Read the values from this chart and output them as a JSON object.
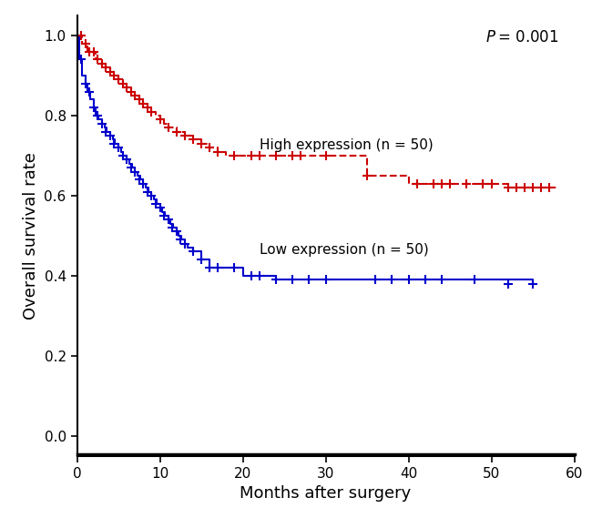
{
  "title": "",
  "xlabel": "Months after surgery",
  "ylabel": "Overall survival rate",
  "xlim": [
    0,
    60
  ],
  "ylim": [
    -0.05,
    1.05
  ],
  "xticks": [
    0,
    10,
    20,
    30,
    40,
    50,
    60
  ],
  "yticks": [
    0.0,
    0.2,
    0.4,
    0.6,
    0.8,
    1.0
  ],
  "pvalue_text": "P = 0.001",
  "high_label": "High expression (n = 50)",
  "low_label": "Low expression (n = 50)",
  "high_color": "#CC0000",
  "low_color": "#0000CC",
  "high_km_times": [
    0,
    0.3,
    0.6,
    1.0,
    1.3,
    1.6,
    2.0,
    2.3,
    2.6,
    3.0,
    3.3,
    3.6,
    4.0,
    4.5,
    5.0,
    5.5,
    6.0,
    6.5,
    7.0,
    7.5,
    8.0,
    8.5,
    9.0,
    9.5,
    10.0,
    10.5,
    11.0,
    12.0,
    13.0,
    14.0,
    15.0,
    16.0,
    17.0,
    18.0,
    19.0,
    20.0,
    21.0,
    22.0,
    25.0,
    27.0,
    30.0,
    35.0,
    40.0,
    41.0,
    43.0,
    44.0,
    46.0,
    48.0,
    50.0,
    52.0,
    54.0,
    55.0,
    56.0,
    57.0,
    58.0
  ],
  "high_km_surv": [
    1.0,
    1.0,
    0.98,
    0.98,
    0.96,
    0.96,
    0.96,
    0.94,
    0.94,
    0.93,
    0.93,
    0.92,
    0.91,
    0.9,
    0.89,
    0.88,
    0.87,
    0.86,
    0.85,
    0.84,
    0.83,
    0.82,
    0.81,
    0.8,
    0.79,
    0.78,
    0.77,
    0.76,
    0.75,
    0.74,
    0.73,
    0.72,
    0.71,
    0.7,
    0.7,
    0.7,
    0.7,
    0.7,
    0.7,
    0.7,
    0.7,
    0.65,
    0.63,
    0.63,
    0.63,
    0.63,
    0.63,
    0.63,
    0.63,
    0.62,
    0.62,
    0.62,
    0.62,
    0.62,
    0.62
  ],
  "high_censor_times": [
    0.5,
    1.0,
    1.5,
    2.0,
    2.5,
    3.0,
    3.5,
    4.0,
    4.5,
    5.0,
    5.5,
    6.0,
    6.5,
    7.0,
    7.5,
    8.0,
    8.5,
    9.0,
    10.0,
    11.0,
    12.0,
    13.0,
    14.0,
    15.0,
    16.0,
    17.0,
    19.0,
    21.0,
    22.0,
    24.0,
    26.0,
    27.0,
    30.0,
    35.0,
    41.0,
    43.0,
    44.0,
    45.0,
    47.0,
    49.0,
    50.0,
    52.0,
    53.0,
    54.0,
    55.0,
    56.0,
    57.0
  ],
  "high_censor_surv": [
    1.0,
    0.98,
    0.96,
    0.96,
    0.94,
    0.93,
    0.92,
    0.91,
    0.9,
    0.89,
    0.88,
    0.87,
    0.86,
    0.85,
    0.84,
    0.83,
    0.82,
    0.81,
    0.79,
    0.77,
    0.76,
    0.75,
    0.74,
    0.73,
    0.72,
    0.71,
    0.7,
    0.7,
    0.7,
    0.7,
    0.7,
    0.7,
    0.7,
    0.65,
    0.63,
    0.63,
    0.63,
    0.63,
    0.63,
    0.63,
    0.63,
    0.62,
    0.62,
    0.62,
    0.62,
    0.62,
    0.62
  ],
  "low_km_times": [
    0,
    0.3,
    0.6,
    1.0,
    1.3,
    1.6,
    2.0,
    2.3,
    2.6,
    3.0,
    3.3,
    3.6,
    4.0,
    4.3,
    4.6,
    5.0,
    5.3,
    5.6,
    6.0,
    6.3,
    6.6,
    7.0,
    7.3,
    7.6,
    8.0,
    8.3,
    8.6,
    9.0,
    9.3,
    9.6,
    10.0,
    10.3,
    10.6,
    11.0,
    11.3,
    11.6,
    12.0,
    12.3,
    12.6,
    13.0,
    13.3,
    14.0,
    15.0,
    16.0,
    17.0,
    18.0,
    19.0,
    20.0,
    21.0,
    22.0,
    23.0,
    24.0,
    25.0,
    26.0,
    27.0,
    28.0,
    30.0,
    35.0,
    38.0,
    40.0,
    42.0,
    44.0,
    46.0,
    50.0,
    55.0
  ],
  "low_km_surv": [
    1.0,
    0.94,
    0.9,
    0.88,
    0.86,
    0.84,
    0.82,
    0.8,
    0.79,
    0.78,
    0.77,
    0.76,
    0.75,
    0.74,
    0.73,
    0.72,
    0.71,
    0.7,
    0.69,
    0.68,
    0.67,
    0.66,
    0.65,
    0.64,
    0.63,
    0.62,
    0.61,
    0.6,
    0.59,
    0.58,
    0.57,
    0.56,
    0.55,
    0.54,
    0.53,
    0.52,
    0.51,
    0.5,
    0.49,
    0.48,
    0.47,
    0.46,
    0.44,
    0.42,
    0.42,
    0.42,
    0.42,
    0.4,
    0.4,
    0.4,
    0.4,
    0.39,
    0.39,
    0.39,
    0.39,
    0.39,
    0.39,
    0.39,
    0.39,
    0.39,
    0.39,
    0.39,
    0.39,
    0.39,
    0.38
  ],
  "low_censor_times": [
    0.5,
    1.0,
    1.5,
    2.0,
    2.5,
    3.0,
    3.5,
    4.0,
    4.5,
    5.0,
    5.5,
    6.0,
    6.5,
    7.0,
    7.5,
    8.0,
    8.5,
    9.0,
    9.5,
    10.0,
    10.5,
    11.0,
    11.5,
    12.0,
    12.5,
    13.0,
    14.0,
    15.0,
    16.0,
    17.0,
    19.0,
    21.0,
    22.0,
    24.0,
    26.0,
    28.0,
    30.0,
    36.0,
    38.0,
    40.0,
    42.0,
    44.0,
    48.0,
    52.0,
    55.0
  ],
  "low_censor_surv": [
    0.94,
    0.88,
    0.86,
    0.82,
    0.8,
    0.78,
    0.76,
    0.75,
    0.73,
    0.72,
    0.7,
    0.69,
    0.67,
    0.66,
    0.64,
    0.63,
    0.61,
    0.6,
    0.58,
    0.57,
    0.55,
    0.54,
    0.52,
    0.51,
    0.49,
    0.48,
    0.46,
    0.44,
    0.42,
    0.42,
    0.42,
    0.4,
    0.4,
    0.39,
    0.39,
    0.39,
    0.39,
    0.39,
    0.39,
    0.39,
    0.39,
    0.39,
    0.39,
    0.38,
    0.38
  ]
}
